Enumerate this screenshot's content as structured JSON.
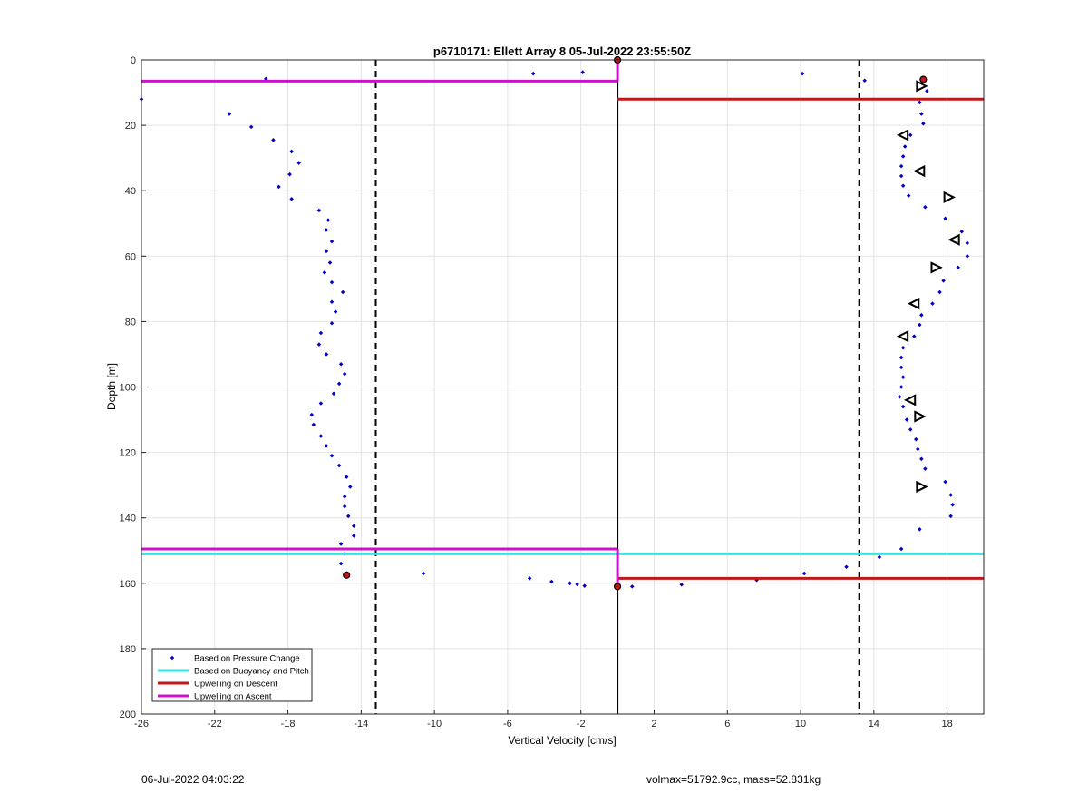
{
  "chart_data": {
    "type": "scatter",
    "title": "p6710171: Ellett Array 8 05-Jul-2022 23:55:50Z",
    "xlabel": "Vertical Velocity [cm/s]",
    "ylabel": "Depth [m]",
    "xlim": [
      -26,
      20
    ],
    "ylim": [
      200,
      0
    ],
    "y_reversed": true,
    "grid": true,
    "legend_position": "bottom-left",
    "xticks": [
      -26,
      -22,
      -18,
      -14,
      -10,
      -6,
      -2,
      2,
      6,
      10,
      14,
      18
    ],
    "yticks": [
      0,
      20,
      40,
      60,
      80,
      100,
      120,
      140,
      160,
      180,
      200
    ],
    "legend": [
      {
        "label": "Based on Pressure Change",
        "kind": "dot",
        "color": "#0000cc"
      },
      {
        "label": "Based on Buoyancy and Pitch",
        "kind": "line",
        "color": "#33e6e6"
      },
      {
        "label": "Upwelling on Descent",
        "kind": "line",
        "color": "#c01818"
      },
      {
        "label": "Upwelling on Ascent",
        "kind": "line",
        "color": "#cc11cc"
      }
    ],
    "series": [
      {
        "name": "Based on Pressure Change",
        "color": "#0000cc",
        "points": [
          [
            -4.6,
            4.2
          ],
          [
            -1.9,
            3.8
          ],
          [
            -19.2,
            5.8
          ],
          [
            -26,
            12
          ],
          [
            -21.2,
            16.5
          ],
          [
            -20,
            20.5
          ],
          [
            -18.8,
            24.5
          ],
          [
            -17.8,
            28
          ],
          [
            -17.4,
            31.5
          ],
          [
            -17.9,
            35
          ],
          [
            -18.5,
            38.8
          ],
          [
            -17.8,
            42.5
          ],
          [
            -16.3,
            46
          ],
          [
            -15.8,
            49
          ],
          [
            -15.9,
            52
          ],
          [
            -15.6,
            55.5
          ],
          [
            -15.9,
            58.5
          ],
          [
            -15.7,
            62
          ],
          [
            -16,
            65
          ],
          [
            -15.6,
            68
          ],
          [
            -15,
            71
          ],
          [
            -15.6,
            74
          ],
          [
            -15.4,
            77
          ],
          [
            -15.6,
            80.5
          ],
          [
            -16.2,
            83.5
          ],
          [
            -16.3,
            87
          ],
          [
            -15.9,
            90
          ],
          [
            -15.1,
            93
          ],
          [
            -14.9,
            96
          ],
          [
            -15.2,
            99
          ],
          [
            -15.5,
            102
          ],
          [
            -16.2,
            105
          ],
          [
            -16.7,
            108.5
          ],
          [
            -16.6,
            111.5
          ],
          [
            -16.2,
            115
          ],
          [
            -15.9,
            118
          ],
          [
            -15.6,
            121
          ],
          [
            -15.2,
            124
          ],
          [
            -14.8,
            127.5
          ],
          [
            -14.6,
            130.5
          ],
          [
            -14.9,
            133.5
          ],
          [
            -14.9,
            136.5
          ],
          [
            -14.7,
            139.5
          ],
          [
            -14.4,
            142.5
          ],
          [
            -14.4,
            145.5
          ],
          [
            -15.1,
            148
          ],
          [
            -14.9,
            151
          ],
          [
            -15.1,
            154
          ],
          [
            -10.6,
            157
          ],
          [
            -4.8,
            158.5
          ],
          [
            -3.6,
            159.5
          ],
          [
            -2.6,
            160
          ],
          [
            -2.2,
            160.3
          ],
          [
            -1.8,
            160.8
          ],
          [
            0.8,
            161
          ],
          [
            3.5,
            160.4
          ],
          [
            7.6,
            159
          ],
          [
            10.2,
            157
          ],
          [
            12.5,
            155
          ],
          [
            14.3,
            152
          ],
          [
            15.5,
            149.5
          ],
          [
            16.5,
            143.5
          ],
          [
            18.2,
            139.5
          ],
          [
            18.3,
            136
          ],
          [
            18.2,
            133
          ],
          [
            17.9,
            129
          ],
          [
            16.8,
            125
          ],
          [
            16.6,
            122
          ],
          [
            16.4,
            119
          ],
          [
            16.3,
            116
          ],
          [
            16.0,
            113
          ],
          [
            15.8,
            110
          ],
          [
            15.6,
            106
          ],
          [
            15.4,
            103
          ],
          [
            15.5,
            100
          ],
          [
            15.6,
            97
          ],
          [
            15.5,
            94
          ],
          [
            15.5,
            91
          ],
          [
            15.6,
            88
          ],
          [
            16.2,
            84.5
          ],
          [
            16.5,
            81
          ],
          [
            16.6,
            78
          ],
          [
            17.2,
            74.5
          ],
          [
            17.6,
            71
          ],
          [
            17.8,
            67.5
          ],
          [
            18.6,
            63.5
          ],
          [
            19.1,
            60
          ],
          [
            19.1,
            56
          ],
          [
            18.8,
            52.5
          ],
          [
            17.9,
            48.5
          ],
          [
            16.8,
            45
          ],
          [
            15.9,
            41.5
          ],
          [
            15.6,
            38.5
          ],
          [
            15.5,
            35.5
          ],
          [
            15.5,
            32.5
          ],
          [
            15.6,
            29.5
          ],
          [
            15.7,
            26.5
          ],
          [
            16.0,
            23
          ],
          [
            16.7,
            19.5
          ],
          [
            16.6,
            16.5
          ],
          [
            16.5,
            13
          ],
          [
            16.9,
            9.5
          ],
          [
            16.8,
            6
          ],
          [
            13.5,
            6.3
          ],
          [
            10.1,
            4.2
          ]
        ]
      },
      {
        "name": "Based on Buoyancy and Pitch",
        "color": "#33e6e6",
        "segments": [
          {
            "x": [
              -26,
              0
            ],
            "y": [
              151,
              151
            ]
          },
          {
            "x": [
              0,
              20
            ],
            "y": [
              151,
              151
            ]
          }
        ]
      },
      {
        "name": "Upwelling on Descent",
        "color": "#c01818",
        "segments": [
          {
            "x": [
              0,
              20
            ],
            "y": [
              12,
              12
            ]
          },
          {
            "x": [
              0,
              20
            ],
            "y": [
              158.5,
              158.5
            ]
          }
        ]
      },
      {
        "name": "Upwelling on Ascent",
        "color": "#cc11cc",
        "segments": [
          {
            "x": [
              -26,
              0
            ],
            "y": [
              6.5,
              6.5
            ]
          },
          {
            "x": [
              -26,
              0
            ],
            "y": [
              149.5,
              149.5
            ]
          },
          {
            "x": [
              0,
              0
            ],
            "y": [
              0,
              6.5
            ]
          },
          {
            "x": [
              0,
              0
            ],
            "y": [
              149.5,
              161
            ]
          }
        ]
      }
    ],
    "reference_lines": [
      {
        "x": 0,
        "style": "solid",
        "color": "#000000"
      },
      {
        "x": -13.2,
        "style": "dashed",
        "color": "#000000"
      },
      {
        "x": 13.2,
        "style": "dashed",
        "color": "#000000"
      }
    ],
    "triangle_markers": [
      {
        "x": 16.6,
        "y": 8,
        "dir": "right"
      },
      {
        "x": 15.6,
        "y": 23,
        "dir": "left"
      },
      {
        "x": 16.5,
        "y": 34,
        "dir": "left"
      },
      {
        "x": 18.1,
        "y": 42,
        "dir": "right"
      },
      {
        "x": 18.4,
        "y": 55,
        "dir": "left"
      },
      {
        "x": 17.4,
        "y": 63.5,
        "dir": "right"
      },
      {
        "x": 16.2,
        "y": 74.5,
        "dir": "left"
      },
      {
        "x": 15.6,
        "y": 84.5,
        "dir": "left"
      },
      {
        "x": 16.0,
        "y": 104,
        "dir": "left"
      },
      {
        "x": 16.5,
        "y": 109,
        "dir": "right"
      },
      {
        "x": 16.6,
        "y": 130.5,
        "dir": "right"
      }
    ],
    "red_markers": [
      {
        "x": 0,
        "y": 0
      },
      {
        "x": 16.7,
        "y": 6
      },
      {
        "x": -14.8,
        "y": 157.5
      },
      {
        "x": 0,
        "y": 161
      }
    ]
  },
  "footer": {
    "left": "06-Jul-2022 04:03:22",
    "right": "volmax=51792.9cc, mass=52.831kg"
  }
}
